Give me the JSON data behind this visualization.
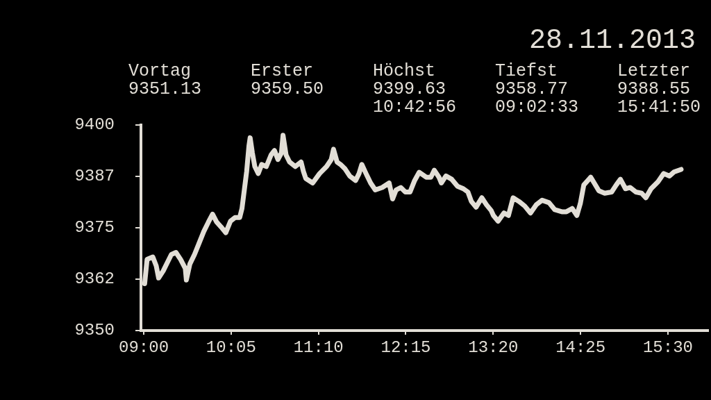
{
  "chart_data": {
    "type": "line",
    "title": "28.11.2013",
    "annotations": [
      "Vortag\n9351.13",
      "Erster\n9359.50",
      "Höchst\n9399.63\n10:42:56",
      "Tiefst\n9358.77\n09:02:33",
      "Letzter\n9388.55\n15:41:50"
    ],
    "x": [
      9.011,
      9.041,
      9.112,
      9.155,
      9.184,
      9.241,
      9.299,
      9.342,
      9.399,
      9.457,
      9.515,
      9.528,
      9.572,
      9.629,
      9.687,
      9.744,
      9.802,
      9.853,
      9.903,
      9.959,
      10.017,
      10.075,
      10.132,
      10.19,
      10.218,
      10.247,
      10.276,
      10.304,
      10.319,
      10.347,
      10.377,
      10.42,
      10.463,
      10.52,
      10.578,
      10.621,
      10.664,
      10.707,
      10.727,
      10.765,
      10.808,
      10.879,
      10.951,
      10.98,
      11.009,
      11.095,
      11.181,
      11.267,
      11.325,
      11.353,
      11.397,
      11.44,
      11.497,
      11.554,
      11.627,
      11.67,
      11.704,
      11.756,
      11.813,
      11.871,
      11.957,
      12.043,
      12.086,
      12.129,
      12.187,
      12.244,
      12.302,
      12.359,
      12.416,
      12.503,
      12.56,
      12.603,
      12.661,
      12.69,
      12.747,
      12.819,
      12.891,
      12.963,
      13.02,
      13.063,
      13.121,
      13.192,
      13.25,
      13.308,
      13.336,
      13.394,
      13.466,
      13.523,
      13.58,
      13.653,
      13.724,
      13.796,
      13.868,
      13.94,
      14.026,
      14.097,
      14.184,
      14.241,
      14.313,
      14.371,
      14.414,
      14.457,
      14.543,
      14.586,
      14.644,
      14.716,
      14.802,
      14.859,
      14.911,
      14.974,
      15.032,
      15.103,
      15.175,
      15.227,
      15.291,
      15.377,
      15.448,
      15.52,
      15.578,
      15.664
    ],
    "series": [
      {
        "color": "#e2ded6",
        "values": [
          9361.4,
          9367.3,
          9367.9,
          9365.7,
          9362.8,
          9364.5,
          9366.8,
          9368.5,
          9369.0,
          9367.3,
          9365.1,
          9362.3,
          9366.2,
          9368.5,
          9371.3,
          9374.1,
          9376.4,
          9378.3,
          9376.4,
          9375.2,
          9373.8,
          9376.6,
          9377.5,
          9377.5,
          9379.7,
          9384.2,
          9388.7,
          9394.9,
          9396.9,
          9393.2,
          9389.9,
          9388.2,
          9390.4,
          9389.9,
          9392.7,
          9393.8,
          9391.6,
          9393.2,
          9397.5,
          9392.7,
          9391.0,
          9389.9,
          9391.0,
          9388.7,
          9387.0,
          9385.9,
          9388.2,
          9389.9,
          9391.6,
          9394.1,
          9391.0,
          9390.4,
          9389.3,
          9387.6,
          9386.5,
          9388.2,
          9390.4,
          9388.2,
          9385.9,
          9384.2,
          9384.8,
          9385.9,
          9382.0,
          9384.2,
          9384.8,
          9383.7,
          9383.7,
          9386.5,
          9388.5,
          9387.3,
          9387.3,
          9389.0,
          9387.3,
          9385.9,
          9387.6,
          9386.8,
          9385.1,
          9384.5,
          9383.7,
          9381.4,
          9380.0,
          9382.3,
          9380.6,
          9379.2,
          9378.0,
          9376.6,
          9378.6,
          9378.0,
          9382.3,
          9381.4,
          9380.3,
          9378.6,
          9380.6,
          9381.7,
          9381.1,
          9379.4,
          9378.9,
          9378.9,
          9379.7,
          9378.0,
          9380.9,
          9385.4,
          9387.3,
          9385.9,
          9384.0,
          9383.4,
          9383.7,
          9385.4,
          9386.8,
          9384.5,
          9384.8,
          9383.7,
          9383.4,
          9382.3,
          9384.5,
          9386.2,
          9388.2,
          9387.6,
          9388.6,
          9389.2
        ]
      }
    ],
    "xlim": [
      8.965,
      16.0
    ],
    "xticks": [
      {
        "value": 9.0,
        "label": "09:00"
      },
      {
        "value": 10.0833,
        "label": "10:05"
      },
      {
        "value": 11.1667,
        "label": "11:10"
      },
      {
        "value": 12.25,
        "label": "12:15"
      },
      {
        "value": 13.3333,
        "label": "13:20"
      },
      {
        "value": 14.4167,
        "label": "14:25"
      },
      {
        "value": 15.5,
        "label": "15:30"
      }
    ],
    "ylim": [
      9350,
      9400
    ],
    "yticks": [
      9350,
      {
        "value": 9362.5,
        "label": "9362"
      },
      9375,
      {
        "value": 9387.5,
        "label": "9387"
      },
      9400
    ],
    "grid": false,
    "legend": false,
    "marker": "none",
    "line_style": "solid"
  }
}
